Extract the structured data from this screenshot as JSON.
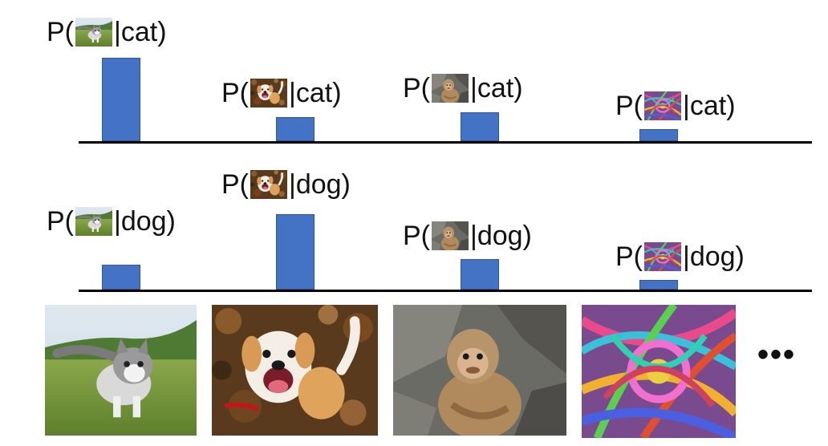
{
  "rows": [
    {
      "class_label": "cat",
      "labels": [
        "P(",
        "|cat)"
      ],
      "values": [
        1.0,
        0.29,
        0.35,
        0.14
      ]
    },
    {
      "class_label": "dog",
      "labels": [
        "P(",
        "|dog)"
      ],
      "values": [
        0.3,
        0.9,
        0.37,
        0.12
      ]
    }
  ],
  "images": [
    "kitten",
    "dog",
    "monkey",
    "noise"
  ],
  "ellipsis": "•••",
  "colors": {
    "bar": "#4472c4",
    "bar_border": "#2f5597",
    "axis": "#000000"
  },
  "chart_data": [
    {
      "type": "bar",
      "categories": [
        "kitten",
        "dog",
        "monkey",
        "noise"
      ],
      "values": [
        1.0,
        0.29,
        0.35,
        0.14
      ],
      "title": "P(x|cat)"
    },
    {
      "type": "bar",
      "categories": [
        "kitten",
        "dog",
        "monkey",
        "noise"
      ],
      "values": [
        0.3,
        0.9,
        0.37,
        0.12
      ],
      "title": "P(x|dog)"
    }
  ]
}
